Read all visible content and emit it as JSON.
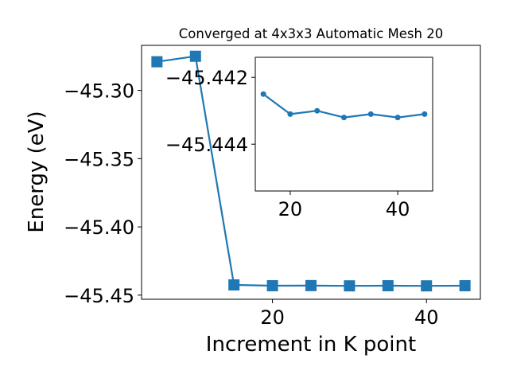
{
  "chart_data": [
    {
      "type": "line",
      "title": "Converged at 4x3x3 Automatic Mesh 20",
      "xlabel": "Increment in K point",
      "ylabel": "Energy (eV)",
      "xlim": [
        3,
        47
      ],
      "ylim": [
        -45.453,
        -45.267
      ],
      "xticks": [
        20,
        40
      ],
      "yticks": [
        -45.3,
        -45.35,
        -45.4,
        -45.45
      ],
      "ytick_labels": [
        "−45.30",
        "−45.35",
        "−45.40",
        "−45.45"
      ],
      "marker": "square",
      "color": "#1f77b4",
      "grid": false,
      "series": [
        {
          "x": [
            5,
            10,
            15,
            20,
            25,
            30,
            35,
            40,
            45
          ],
          "y": [
            -45.279,
            -45.275,
            -45.4425,
            -45.4431,
            -45.443,
            -45.4432,
            -45.4431,
            -45.4432,
            -45.4431
          ]
        }
      ]
    },
    {
      "type": "line",
      "title": "",
      "xlabel": "",
      "ylabel": "",
      "xlim": [
        13.5,
        46.5
      ],
      "ylim": [
        -45.4454,
        -45.4414
      ],
      "xticks": [
        20,
        40
      ],
      "yticks": [
        -45.444,
        -45.442
      ],
      "ytick_labels": [
        "−45.444",
        "−45.442"
      ],
      "marker": "circle",
      "color": "#1f77b4",
      "grid": false,
      "series": [
        {
          "x": [
            15,
            20,
            25,
            30,
            35,
            40,
            45
          ],
          "y": [
            -45.4425,
            -45.4431,
            -45.443,
            -45.4432,
            -45.4431,
            -45.4432,
            -45.4431
          ]
        }
      ]
    }
  ]
}
